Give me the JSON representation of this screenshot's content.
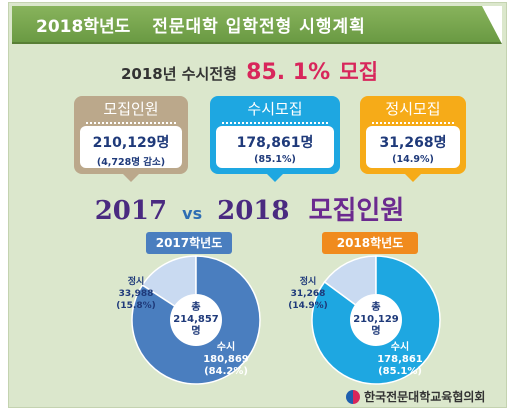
{
  "banner": {
    "year_label": "2018학년도",
    "title": "전문대학 입학전형 시행계획"
  },
  "headline": {
    "prefix": "2018년  수시전형",
    "percent": "85. 1%",
    "suffix": "모집"
  },
  "cards": [
    {
      "label": "모집인원",
      "value": "210,129명",
      "sub": "(4,728명 감소)",
      "color": "#bba88b"
    },
    {
      "label": "수시모집",
      "value": "178,861명",
      "sub": "(85.1%)",
      "color": "#1ea7e1"
    },
    {
      "label": "정시모집",
      "value": "31,268명",
      "sub": "(14.9%)",
      "color": "#f6ab18"
    }
  ],
  "comparison": {
    "year1": "2017",
    "vs": "vs",
    "year2": "2018",
    "word": "모집인원"
  },
  "chart_data": [
    {
      "type": "pie",
      "title": "2017학년도",
      "center_label": "총",
      "center_value": "214,857",
      "center_unit": "명",
      "slices": [
        {
          "name": "정시",
          "value": 33988,
          "value_text": "33,988",
          "percent": 15.8,
          "percent_text": "(15.8%)",
          "color": "#c9daf1"
        },
        {
          "name": "수시",
          "value": 180869,
          "value_text": "180,869",
          "percent": 84.2,
          "percent_text": "(84.2%)",
          "color": "#4a7ebf"
        }
      ]
    },
    {
      "type": "pie",
      "title": "2018학년도",
      "center_label": "총",
      "center_value": "210,129",
      "center_unit": "명",
      "slices": [
        {
          "name": "정시",
          "value": 31268,
          "value_text": "31,268",
          "percent": 14.9,
          "percent_text": "(14.9%)",
          "color": "#c9daf1"
        },
        {
          "name": "수시",
          "value": 178861,
          "value_text": "178,861",
          "percent": 85.1,
          "percent_text": "(85.1%)",
          "color": "#1ea7e1"
        }
      ]
    }
  ],
  "footer": {
    "org": "한국전문대학교육협의회"
  }
}
